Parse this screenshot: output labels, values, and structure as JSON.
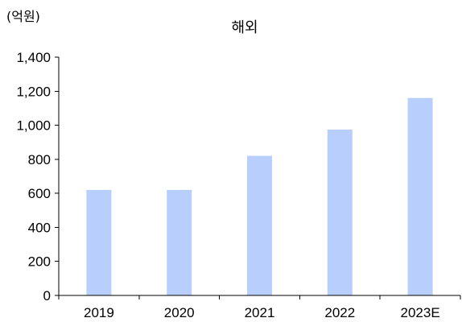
{
  "chart_data": {
    "type": "bar",
    "title": "해외",
    "unit_label": "(억원)",
    "categories": [
      "2019",
      "2020",
      "2021",
      "2022",
      "2023E"
    ],
    "values": [
      620,
      620,
      820,
      975,
      1160
    ],
    "ylim": [
      0,
      1400
    ],
    "yticks": [
      0,
      200,
      400,
      600,
      800,
      1000,
      1200,
      1400
    ],
    "ytick_labels": [
      "0",
      "200",
      "400",
      "600",
      "800",
      "1,000",
      "1,200",
      "1,400"
    ],
    "grid": false,
    "legend": "none",
    "bar_color": "#b8cefc"
  }
}
